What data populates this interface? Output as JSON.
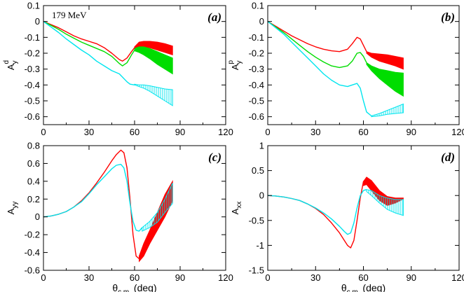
{
  "colors": {
    "red": "#ff0000",
    "green": "#00dd00",
    "cyan": "#00e5ee",
    "axis": "#000000"
  },
  "chart_data": [
    {
      "id": "a",
      "type": "line",
      "tag": "(a)",
      "annotation": "179 MeV",
      "ylabel": "A",
      "ylabel_sub": "y",
      "ylabel_sup": "d",
      "xlabel": "",
      "xlim": [
        0,
        120
      ],
      "ylim": [
        -0.65,
        0.1
      ],
      "xticks": [
        0,
        30,
        60,
        90,
        120
      ],
      "yticks": [
        0.1,
        0,
        -0.1,
        -0.2,
        -0.3,
        -0.4,
        -0.5,
        -0.6
      ],
      "ytick_labels": [
        "0.1",
        "0",
        "-0.1",
        "-0.2",
        "-0.3",
        "-0.4",
        "-0.5",
        "-0.6"
      ],
      "series": [
        {
          "color": "red",
          "x": [
            0,
            5,
            10,
            15,
            20,
            25,
            30,
            35,
            40,
            45,
            50,
            52,
            55,
            58,
            60
          ],
          "y": [
            0,
            -0.02,
            -0.04,
            -0.065,
            -0.09,
            -0.11,
            -0.125,
            -0.14,
            -0.165,
            -0.2,
            -0.24,
            -0.25,
            -0.23,
            -0.19,
            -0.165
          ]
        },
        {
          "color": "green",
          "x": [
            0,
            5,
            10,
            15,
            20,
            25,
            30,
            35,
            40,
            45,
            50,
            52,
            55,
            58,
            60
          ],
          "y": [
            0,
            -0.025,
            -0.05,
            -0.08,
            -0.105,
            -0.13,
            -0.15,
            -0.17,
            -0.19,
            -0.22,
            -0.265,
            -0.28,
            -0.26,
            -0.21,
            -0.18
          ]
        },
        {
          "color": "cyan",
          "x": [
            0,
            5,
            10,
            15,
            20,
            25,
            30,
            35,
            40,
            45,
            50,
            55,
            57,
            60
          ],
          "y": [
            0,
            -0.035,
            -0.07,
            -0.11,
            -0.145,
            -0.18,
            -0.21,
            -0.25,
            -0.28,
            -0.31,
            -0.33,
            -0.38,
            -0.395,
            -0.4
          ]
        }
      ],
      "bands": [
        {
          "color": "red",
          "style": "fill",
          "x": [
            60,
            63,
            66,
            70,
            75,
            80,
            85
          ],
          "upper": [
            -0.16,
            -0.13,
            -0.125,
            -0.125,
            -0.13,
            -0.14,
            -0.155
          ],
          "lower": [
            -0.17,
            -0.165,
            -0.16,
            -0.165,
            -0.18,
            -0.195,
            -0.21
          ]
        },
        {
          "color": "green",
          "style": "fill",
          "x": [
            60,
            63,
            66,
            70,
            75,
            80,
            85
          ],
          "upper": [
            -0.17,
            -0.16,
            -0.16,
            -0.17,
            -0.19,
            -0.21,
            -0.23
          ],
          "lower": [
            -0.185,
            -0.195,
            -0.21,
            -0.235,
            -0.27,
            -0.3,
            -0.33
          ]
        },
        {
          "color": "cyan",
          "style": "hatch",
          "x": [
            60,
            63,
            66,
            70,
            75,
            80,
            85
          ],
          "upper": [
            -0.395,
            -0.4,
            -0.4,
            -0.405,
            -0.415,
            -0.425,
            -0.43
          ],
          "lower": [
            -0.4,
            -0.41,
            -0.42,
            -0.44,
            -0.47,
            -0.5,
            -0.53
          ]
        }
      ]
    },
    {
      "id": "b",
      "type": "line",
      "tag": "(b)",
      "ylabel": "A",
      "ylabel_sub": "y",
      "ylabel_sup": "p",
      "xlabel": "",
      "xlim": [
        0,
        120
      ],
      "ylim": [
        -0.65,
        0.1
      ],
      "xticks": [
        0,
        30,
        60,
        90,
        120
      ],
      "yticks": [
        0.1,
        0,
        -0.1,
        -0.2,
        -0.3,
        -0.4,
        -0.5,
        -0.6
      ],
      "ytick_labels": [
        "0.1",
        "0",
        "-0.1",
        "-0.2",
        "-0.3",
        "-0.4",
        "-0.5",
        "-0.6"
      ],
      "series": [
        {
          "color": "red",
          "x": [
            0,
            5,
            10,
            15,
            20,
            25,
            30,
            35,
            40,
            45,
            50,
            53,
            56,
            58,
            60,
            62
          ],
          "y": [
            0,
            -0.03,
            -0.06,
            -0.09,
            -0.115,
            -0.14,
            -0.16,
            -0.175,
            -0.185,
            -0.19,
            -0.175,
            -0.14,
            -0.1,
            -0.11,
            -0.15,
            -0.19
          ]
        },
        {
          "color": "green",
          "x": [
            0,
            5,
            10,
            15,
            20,
            25,
            30,
            35,
            40,
            45,
            50,
            53,
            56,
            58,
            60,
            62
          ],
          "y": [
            0,
            -0.035,
            -0.07,
            -0.11,
            -0.15,
            -0.19,
            -0.225,
            -0.255,
            -0.28,
            -0.29,
            -0.28,
            -0.25,
            -0.2,
            -0.195,
            -0.22,
            -0.26
          ]
        },
        {
          "color": "cyan",
          "x": [
            0,
            5,
            10,
            15,
            20,
            25,
            30,
            35,
            40,
            45,
            50,
            53,
            56,
            58,
            60,
            62,
            65
          ],
          "y": [
            0,
            -0.04,
            -0.08,
            -0.13,
            -0.18,
            -0.23,
            -0.28,
            -0.33,
            -0.37,
            -0.4,
            -0.41,
            -0.4,
            -0.39,
            -0.42,
            -0.5,
            -0.57,
            -0.595
          ]
        }
      ],
      "bands": [
        {
          "color": "red",
          "style": "fill",
          "x": [
            62,
            65,
            70,
            75,
            80,
            85
          ],
          "upper": [
            -0.19,
            -0.2,
            -0.205,
            -0.21,
            -0.22,
            -0.23
          ],
          "lower": [
            -0.2,
            -0.225,
            -0.25,
            -0.265,
            -0.28,
            -0.3
          ]
        },
        {
          "color": "green",
          "style": "fill",
          "x": [
            62,
            65,
            70,
            75,
            80,
            85
          ],
          "upper": [
            -0.26,
            -0.28,
            -0.3,
            -0.31,
            -0.32,
            -0.325
          ],
          "lower": [
            -0.27,
            -0.31,
            -0.36,
            -0.4,
            -0.44,
            -0.47
          ]
        },
        {
          "color": "cyan",
          "style": "hatch",
          "x": [
            65,
            70,
            75,
            80,
            85
          ],
          "upper": [
            -0.595,
            -0.58,
            -0.56,
            -0.54,
            -0.52
          ],
          "lower": [
            -0.6,
            -0.595,
            -0.585,
            -0.58,
            -0.575
          ]
        }
      ]
    },
    {
      "id": "c",
      "type": "line",
      "tag": "(c)",
      "ylabel": "A",
      "ylabel_sub": "yy",
      "ylabel_sup": "",
      "xlabel": "θ",
      "xlabel_sub": "c.m.",
      "xlabel_unit": " (deg)",
      "xlim": [
        0,
        120
      ],
      "ylim": [
        -0.6,
        0.8
      ],
      "xticks": [
        0,
        30,
        60,
        90,
        120
      ],
      "yticks": [
        0.8,
        0.6,
        0.4,
        0.2,
        0,
        -0.2,
        -0.4,
        -0.6
      ],
      "ytick_labels": [
        "0.8",
        "0.6",
        "0.4",
        "0.2",
        "0",
        "-0.2",
        "-0.4",
        "-0.6"
      ],
      "series": [
        {
          "color": "red",
          "x": [
            0,
            5,
            10,
            15,
            20,
            25,
            30,
            35,
            40,
            45,
            48,
            51,
            53,
            55,
            57,
            59,
            61,
            63,
            65
          ],
          "y": [
            0,
            0.01,
            0.03,
            0.06,
            0.11,
            0.18,
            0.27,
            0.38,
            0.5,
            0.63,
            0.7,
            0.75,
            0.72,
            0.55,
            0.2,
            -0.2,
            -0.44,
            -0.47,
            -0.38
          ]
        },
        {
          "color": "cyan",
          "x": [
            0,
            5,
            10,
            15,
            20,
            25,
            30,
            35,
            40,
            45,
            48,
            51,
            53,
            55,
            57,
            59,
            61,
            63,
            65
          ],
          "y": [
            0,
            0.01,
            0.03,
            0.06,
            0.11,
            0.17,
            0.26,
            0.36,
            0.45,
            0.54,
            0.58,
            0.59,
            0.55,
            0.4,
            0.15,
            -0.05,
            -0.15,
            -0.16,
            -0.12
          ]
        }
      ],
      "bands": [
        {
          "color": "red",
          "style": "fill",
          "x": [
            63,
            66,
            70,
            75,
            80,
            85
          ],
          "upper": [
            -0.44,
            -0.3,
            -0.15,
            0.05,
            0.25,
            0.4
          ],
          "lower": [
            -0.5,
            -0.44,
            -0.3,
            -0.15,
            0.0,
            0.18
          ]
        },
        {
          "color": "cyan",
          "style": "hatch",
          "x": [
            65,
            70,
            75,
            80,
            85
          ],
          "upper": [
            -0.12,
            -0.05,
            0.05,
            0.2,
            0.38
          ],
          "lower": [
            -0.16,
            -0.12,
            -0.06,
            0.05,
            0.15
          ]
        }
      ]
    },
    {
      "id": "d",
      "type": "line",
      "tag": "(d)",
      "ylabel": "A",
      "ylabel_sub": "xx",
      "ylabel_sup": "",
      "xlabel": "θ",
      "xlabel_sub": "c.m.",
      "xlabel_unit": " (deg)",
      "xlim": [
        0,
        120
      ],
      "ylim": [
        -1.5,
        1
      ],
      "xticks": [
        0,
        30,
        60,
        90,
        120
      ],
      "yticks": [
        1,
        0.5,
        0,
        -0.5,
        -1,
        -1.5
      ],
      "ytick_labels": [
        "1",
        "0.5",
        "0",
        "-0.5",
        "-1",
        "-1.5"
      ],
      "series": [
        {
          "color": "red",
          "x": [
            0,
            5,
            10,
            15,
            20,
            25,
            30,
            35,
            40,
            45,
            48,
            50,
            52,
            54,
            56,
            58,
            60,
            62
          ],
          "y": [
            0,
            -0.01,
            -0.03,
            -0.06,
            -0.1,
            -0.17,
            -0.26,
            -0.38,
            -0.55,
            -0.75,
            -0.9,
            -1.0,
            -1.05,
            -0.9,
            -0.5,
            -0.05,
            0.28,
            0.35
          ]
        },
        {
          "color": "cyan",
          "x": [
            0,
            5,
            10,
            15,
            20,
            25,
            30,
            35,
            40,
            45,
            48,
            50,
            52,
            54,
            56,
            58,
            60,
            62
          ],
          "y": [
            0,
            -0.01,
            -0.03,
            -0.06,
            -0.1,
            -0.17,
            -0.25,
            -0.35,
            -0.47,
            -0.62,
            -0.72,
            -0.78,
            -0.75,
            -0.55,
            -0.25,
            0.0,
            0.1,
            0.12
          ]
        }
      ],
      "bands": [
        {
          "color": "red",
          "style": "fill",
          "x": [
            60,
            62,
            65,
            70,
            75,
            80,
            85
          ],
          "upper": [
            0.28,
            0.37,
            0.3,
            0.1,
            -0.02,
            -0.05,
            -0.05
          ],
          "lower": [
            0.2,
            0.22,
            0.1,
            -0.1,
            -0.2,
            -0.15,
            -0.07
          ]
        },
        {
          "color": "cyan",
          "style": "hatch",
          "x": [
            62,
            65,
            70,
            75,
            80,
            85
          ],
          "upper": [
            0.12,
            0.1,
            0.0,
            -0.05,
            -0.08,
            -0.08
          ],
          "lower": [
            0.08,
            0.0,
            -0.15,
            -0.28,
            -0.35,
            -0.4
          ]
        }
      ]
    }
  ]
}
